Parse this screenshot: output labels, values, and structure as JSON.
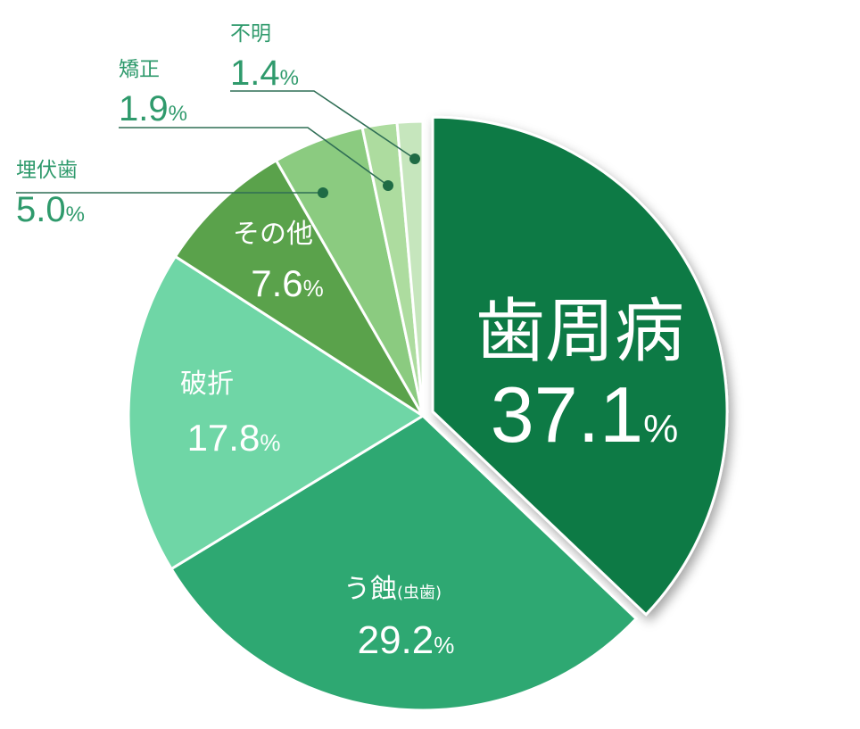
{
  "chart_data": {
    "type": "pie",
    "title": "",
    "slices": [
      {
        "label": "歯周病",
        "value": 37.1,
        "display": "37.1",
        "unit": "%",
        "color": "#0e7a44",
        "exploded": true
      },
      {
        "label": "う蝕",
        "sublabel": "(虫歯)",
        "value": 29.2,
        "display": "29.2",
        "unit": "%",
        "color": "#2ea872"
      },
      {
        "label": "破折",
        "value": 17.8,
        "display": "17.8",
        "unit": "%",
        "color": "#6fd6a6"
      },
      {
        "label": "その他",
        "value": 7.6,
        "display": "7.6",
        "unit": "%",
        "color": "#5aa24b"
      },
      {
        "label": "埋伏歯",
        "value": 5.0,
        "display": "5.0",
        "unit": "%",
        "color": "#8bcb80"
      },
      {
        "label": "矯正",
        "value": 1.9,
        "display": "1.9",
        "unit": "%",
        "color": "#addc9f"
      },
      {
        "label": "不明",
        "value": 1.4,
        "display": "1.4",
        "unit": "%",
        "color": "#c6e6bd"
      }
    ],
    "start": "12 o'clock",
    "direction": "clockwise",
    "legend": "none"
  }
}
